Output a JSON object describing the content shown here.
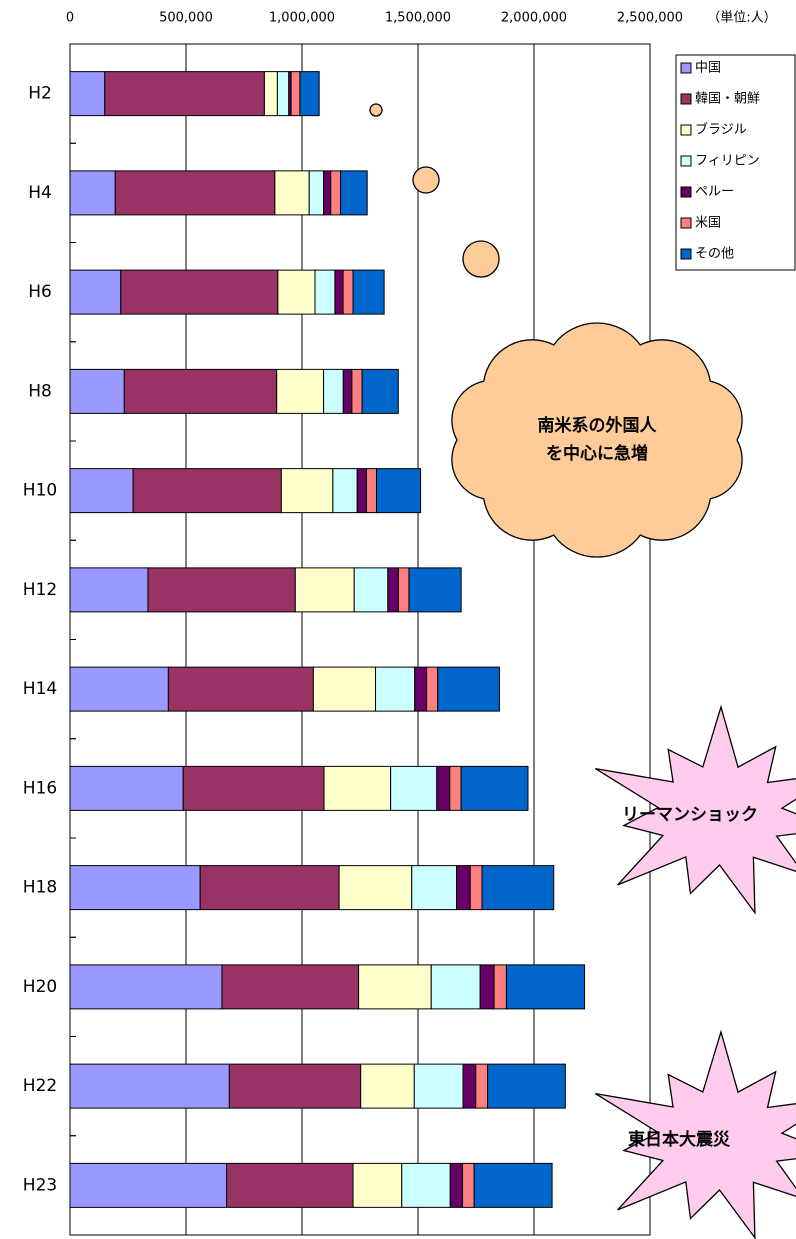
{
  "chart_data": {
    "type": "stacked-barh",
    "unit": "（単位:人）",
    "categories": [
      "H2",
      "H4",
      "H6",
      "H8",
      "H10",
      "H12",
      "H14",
      "H16",
      "H18",
      "H20",
      "H22",
      "H23"
    ],
    "series": [
      {
        "name": "中国",
        "color": "#9999ff",
        "values": [
          150000,
          195000,
          219000,
          234000,
          272000,
          336000,
          424000,
          488000,
          561000,
          655000,
          687000,
          675000
        ]
      },
      {
        "name": "韓国・朝鮮",
        "color": "#993366",
        "values": [
          688000,
          688000,
          677000,
          657000,
          639000,
          635000,
          625000,
          607000,
          599000,
          589000,
          566000,
          545000
        ]
      },
      {
        "name": "ブラジル",
        "color": "#ffffcc",
        "values": [
          56000,
          148000,
          160000,
          202000,
          222000,
          254000,
          268000,
          287000,
          313000,
          313000,
          231000,
          210000
        ]
      },
      {
        "name": "フィリピン",
        "color": "#ccffff",
        "values": [
          49000,
          62000,
          86000,
          85000,
          105000,
          145000,
          169000,
          199000,
          193000,
          211000,
          210000,
          209000
        ]
      },
      {
        "name": "ペルー",
        "color": "#660066",
        "values": [
          10000,
          31000,
          35000,
          37000,
          40000,
          46000,
          51000,
          56000,
          59000,
          60000,
          55000,
          53000
        ]
      },
      {
        "name": "米国",
        "color": "#ff8080",
        "values": [
          38000,
          42000,
          43000,
          44000,
          43000,
          45000,
          48000,
          49000,
          51000,
          53000,
          51000,
          50000
        ]
      },
      {
        "name": "その他",
        "color": "#0066cc",
        "values": [
          83000,
          115000,
          134000,
          156000,
          190000,
          225000,
          266000,
          288000,
          309000,
          337000,
          335000,
          336000
        ]
      }
    ],
    "xlim": [
      0,
      2500000
    ],
    "xticks": [
      0,
      {
        "value": 500000,
        "label": "500,000"
      },
      {
        "value": 1000000,
        "label": "1,000,000"
      },
      {
        "value": 1500000,
        "label": "1,500,000"
      },
      {
        "value": 2000000,
        "label": "2,000,000"
      },
      {
        "value": 2500000,
        "label": "2,500,000"
      }
    ],
    "grid": true,
    "legend": "right",
    "annotations": [
      "南米系の外国人",
      "を中心に急増",
      "リーマンショック",
      "東日本大震災"
    ]
  }
}
